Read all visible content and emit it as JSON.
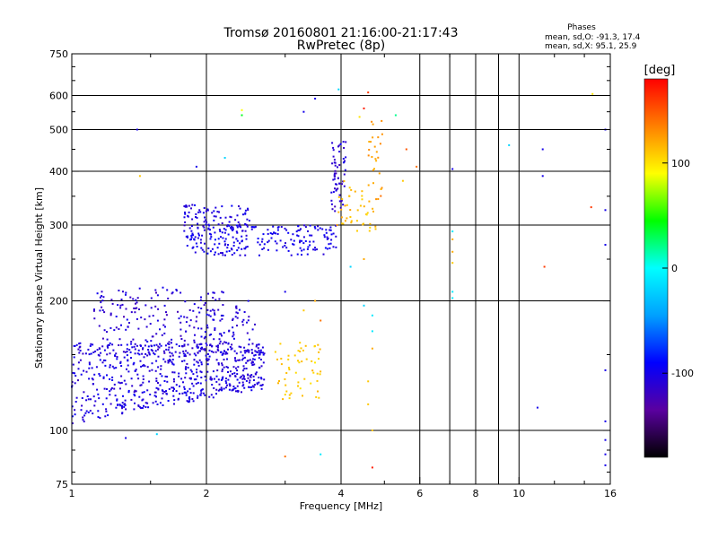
{
  "chart_data": {
    "type": "scatter",
    "title": "Tromsø 20160801 21:16:00-21:17:43",
    "subtitle": "RwPretec (8p)",
    "xlabel": "Frequency [MHz]",
    "ylabel": "Stationary phase Virtual Height [km]",
    "xscale": "log",
    "yscale": "log",
    "xlim": [
      1,
      16
    ],
    "ylim": [
      75,
      750
    ],
    "xticks": [
      {
        "v": 1,
        "label": "1"
      },
      {
        "v": 2,
        "label": "2"
      },
      {
        "v": 4,
        "label": "4"
      },
      {
        "v": 6,
        "label": "6"
      },
      {
        "v": 8,
        "label": "8"
      },
      {
        "v": 10,
        "label": "10"
      },
      {
        "v": 16,
        "label": "16"
      }
    ],
    "xgrid": [
      2,
      4,
      6,
      7,
      8,
      9,
      10,
      16
    ],
    "yticks": [
      {
        "v": 75,
        "label": "75"
      },
      {
        "v": 100,
        "label": "100"
      },
      {
        "v": 200,
        "label": "200"
      },
      {
        "v": 300,
        "label": "300"
      },
      {
        "v": 400,
        "label": "400"
      },
      {
        "v": 500,
        "label": "500"
      },
      {
        "v": 600,
        "label": "600"
      },
      {
        "v": 750,
        "label": "750"
      }
    ],
    "ygrid": [
      100,
      200,
      300,
      400,
      500,
      600
    ],
    "grid": true,
    "phase_stats": {
      "header": "Phases",
      "line_o": "mean, sd,O: -91.3, 17.4",
      "line_x": "mean, sd,X:  95.1, 25.9"
    },
    "colorbar": {
      "label": "[deg]",
      "range": [
        -180,
        180
      ],
      "ticks": [
        {
          "v": 100,
          "label": "100"
        },
        {
          "v": 0,
          "label": "0"
        },
        {
          "v": -100,
          "label": "-100"
        }
      ],
      "colors": [
        "#000000",
        "#5a00a0",
        "#0000ff",
        "#00a0ff",
        "#00ffff",
        "#00ff00",
        "#ffff00",
        "#ff8000",
        "#ff0000"
      ]
    },
    "clusters": [
      {
        "name": "O-trace-E-low",
        "f": [
          1.0,
          2.7
        ],
        "h": [
          102,
          160
        ],
        "phase": -105,
        "n": 650
      },
      {
        "name": "O-trace-E-mid",
        "f": [
          1.12,
          2.2
        ],
        "h": [
          150,
          215
        ],
        "phase": -110,
        "n": 180
      },
      {
        "name": "O-trace-E-hi",
        "f": [
          1.75,
          2.6
        ],
        "h": [
          150,
          200
        ],
        "phase": -105,
        "n": 80
      },
      {
        "name": "X-trace-E",
        "f": [
          2.85,
          3.6
        ],
        "h": [
          118,
          160
        ],
        "phase": 110,
        "n": 55
      },
      {
        "name": "O-trace-F-base",
        "f": [
          1.8,
          3.9
        ],
        "h": [
          255,
          300
        ],
        "phase": -100,
        "n": 220
      },
      {
        "name": "O-trace-F-low",
        "f": [
          1.78,
          2.5
        ],
        "h": [
          290,
          335
        ],
        "phase": -105,
        "n": 90
      },
      {
        "name": "O-trace-F-cusp",
        "f": [
          3.8,
          4.1
        ],
        "h": [
          310,
          470
        ],
        "phase": -110,
        "n": 60
      },
      {
        "name": "X-trace-F",
        "f": [
          3.9,
          4.8
        ],
        "h": [
          290,
          380
        ],
        "phase": 115,
        "n": 45
      },
      {
        "name": "X-trace-F-up",
        "f": [
          4.6,
          5.0
        ],
        "h": [
          330,
          530
        ],
        "phase": 125,
        "n": 25
      }
    ],
    "isolated_points": [
      {
        "f": 1.4,
        "h": 500,
        "phase": -100
      },
      {
        "f": 1.42,
        "h": 390,
        "phase": 110
      },
      {
        "f": 1.32,
        "h": 96,
        "phase": -100
      },
      {
        "f": 1.55,
        "h": 98,
        "phase": -20
      },
      {
        "f": 2.4,
        "h": 540,
        "phase": 40
      },
      {
        "f": 2.4,
        "h": 555,
        "phase": 90
      },
      {
        "f": 3.3,
        "h": 550,
        "phase": -100
      },
      {
        "f": 3.5,
        "h": 590,
        "phase": -100
      },
      {
        "f": 3.95,
        "h": 620,
        "phase": -20
      },
      {
        "f": 4.6,
        "h": 610,
        "phase": 160
      },
      {
        "f": 4.5,
        "h": 560,
        "phase": 170
      },
      {
        "f": 4.4,
        "h": 535,
        "phase": 100
      },
      {
        "f": 5.3,
        "h": 540,
        "phase": 20
      },
      {
        "f": 5.6,
        "h": 450,
        "phase": 150
      },
      {
        "f": 5.9,
        "h": 410,
        "phase": 140
      },
      {
        "f": 5.5,
        "h": 380,
        "phase": 110
      },
      {
        "f": 7.1,
        "h": 290,
        "phase": -10
      },
      {
        "f": 7.1,
        "h": 278,
        "phase": 120
      },
      {
        "f": 7.1,
        "h": 260,
        "phase": 120
      },
      {
        "f": 7.1,
        "h": 245,
        "phase": 110
      },
      {
        "f": 7.1,
        "h": 210,
        "phase": -10
      },
      {
        "f": 7.1,
        "h": 203,
        "phase": -10
      },
      {
        "f": 7.1,
        "h": 405,
        "phase": -100
      },
      {
        "f": 9.5,
        "h": 460,
        "phase": -20
      },
      {
        "f": 11.0,
        "h": 113,
        "phase": -100
      },
      {
        "f": 11.3,
        "h": 450,
        "phase": -100
      },
      {
        "f": 11.3,
        "h": 390,
        "phase": -100
      },
      {
        "f": 11.4,
        "h": 240,
        "phase": 160
      },
      {
        "f": 14.5,
        "h": 330,
        "phase": 160
      },
      {
        "f": 14.6,
        "h": 605,
        "phase": 100
      },
      {
        "f": 15.6,
        "h": 270,
        "phase": -100
      },
      {
        "f": 15.6,
        "h": 325,
        "phase": -100
      },
      {
        "f": 15.6,
        "h": 500,
        "phase": -100
      },
      {
        "f": 15.6,
        "h": 138,
        "phase": -100
      },
      {
        "f": 15.6,
        "h": 105,
        "phase": -100
      },
      {
        "f": 15.6,
        "h": 95,
        "phase": -100
      },
      {
        "f": 15.6,
        "h": 88,
        "phase": -100
      },
      {
        "f": 15.6,
        "h": 83,
        "phase": -100
      },
      {
        "f": 3.0,
        "h": 87,
        "phase": 140
      },
      {
        "f": 3.6,
        "h": 88,
        "phase": -10
      },
      {
        "f": 4.7,
        "h": 82,
        "phase": 170
      },
      {
        "f": 4.5,
        "h": 195,
        "phase": -20
      },
      {
        "f": 4.6,
        "h": 130,
        "phase": 110
      },
      {
        "f": 4.6,
        "h": 115,
        "phase": 110
      },
      {
        "f": 4.7,
        "h": 100,
        "phase": 110
      },
      {
        "f": 4.7,
        "h": 155,
        "phase": 120
      },
      {
        "f": 4.7,
        "h": 170,
        "phase": -10
      },
      {
        "f": 4.7,
        "h": 185,
        "phase": -10
      },
      {
        "f": 3.5,
        "h": 200,
        "phase": 120
      },
      {
        "f": 3.3,
        "h": 190,
        "phase": 110
      },
      {
        "f": 3.6,
        "h": 180,
        "phase": 140
      },
      {
        "f": 4.2,
        "h": 240,
        "phase": -20
      },
      {
        "f": 4.5,
        "h": 250,
        "phase": 120
      },
      {
        "f": 3.0,
        "h": 210,
        "phase": -100
      },
      {
        "f": 2.2,
        "h": 430,
        "phase": -20
      },
      {
        "f": 1.9,
        "h": 410,
        "phase": -100
      }
    ]
  }
}
